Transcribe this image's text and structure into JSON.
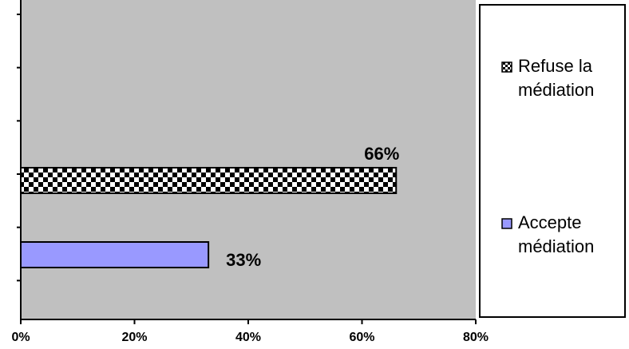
{
  "chart_data": {
    "type": "bar",
    "orientation": "horizontal",
    "categories": [
      "Accepte médiation",
      "Refuse la médiation"
    ],
    "series": [
      {
        "name": "Accepte médiation",
        "value": 33,
        "label": "33%",
        "pattern": "solid",
        "color": "#9999ff"
      },
      {
        "name": "Refuse la médiation",
        "value": 66,
        "label": "66%",
        "pattern": "checker",
        "color": "#000000"
      }
    ],
    "xlim": [
      0,
      80
    ],
    "xticks": [
      0,
      20,
      40,
      60,
      80
    ],
    "xtick_labels": [
      "0%",
      "20%",
      "40%",
      "60%",
      "80%"
    ],
    "plot_background": "#c0c0c0",
    "legend_position": "right",
    "legend": [
      {
        "lines": [
          "Refuse la",
          "médiation"
        ],
        "pattern": "checker"
      },
      {
        "lines": [
          "Accepte",
          "médiation"
        ],
        "pattern": "solid"
      }
    ]
  }
}
